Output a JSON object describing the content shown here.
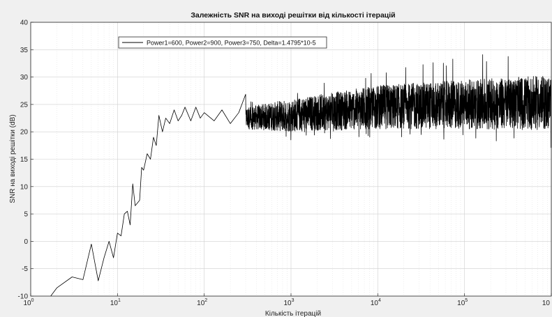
{
  "chart_data": {
    "type": "line",
    "title": "Залежність SNR на виході решітки від кількості ітерацій",
    "xlabel": "Кількість ітерацій",
    "ylabel": "SNR на виході решітки (dB)",
    "x_scale": "log",
    "xlim": [
      1,
      1000000
    ],
    "ylim": [
      -10,
      40
    ],
    "x_ticks": [
      1,
      10,
      100,
      1000,
      10000,
      100000,
      1000000
    ],
    "x_tick_labels": [
      {
        "base": "10",
        "exp": "0"
      },
      {
        "base": "10",
        "exp": "1"
      },
      {
        "base": "10",
        "exp": "2"
      },
      {
        "base": "10",
        "exp": "3"
      },
      {
        "base": "10",
        "exp": "4"
      },
      {
        "base": "10",
        "exp": "5"
      },
      {
        "base": "10",
        "exp": ""
      }
    ],
    "y_ticks": [
      -10,
      -5,
      0,
      5,
      10,
      15,
      20,
      25,
      30,
      35,
      40
    ],
    "grid": true,
    "minor_grid": true,
    "legend_position": "top-left",
    "series": [
      {
        "name": "Power1=600, Power2=900, Power3=750, Delta=1.4795*10-5",
        "color": "#000000",
        "points": [
          [
            1.7,
            -10
          ],
          [
            2,
            -8.5
          ],
          [
            3,
            -6.5
          ],
          [
            4,
            -7
          ],
          [
            5,
            -0.5
          ],
          [
            6,
            -7.2
          ],
          [
            7,
            -3
          ],
          [
            8,
            0
          ],
          [
            9,
            -3
          ],
          [
            10,
            1.5
          ],
          [
            11,
            1
          ],
          [
            12,
            5
          ],
          [
            13,
            5.5
          ],
          [
            14,
            3
          ],
          [
            15,
            10.5
          ],
          [
            16,
            6.5
          ],
          [
            18,
            7.5
          ],
          [
            19,
            13.5
          ],
          [
            20,
            13
          ],
          [
            22,
            16
          ],
          [
            24,
            15
          ],
          [
            26,
            19
          ],
          [
            28,
            17.5
          ],
          [
            30,
            23
          ],
          [
            33,
            20
          ],
          [
            36,
            22.5
          ],
          [
            40,
            21.5
          ],
          [
            45,
            24
          ],
          [
            50,
            22
          ],
          [
            55,
            23
          ],
          [
            60,
            24.5
          ],
          [
            70,
            22
          ],
          [
            80,
            24.5
          ],
          [
            90,
            22.5
          ],
          [
            100,
            23.5
          ],
          [
            130,
            22
          ],
          [
            160,
            24
          ],
          [
            200,
            21.5
          ],
          [
            250,
            23.5
          ]
        ],
        "noise_band": {
          "start": 300,
          "end": 1000000,
          "center": [
            [
              300,
              22.5
            ],
            [
              1000,
              23
            ],
            [
              10000,
              24.5
            ],
            [
              100000,
              25
            ],
            [
              1000000,
              25.3
            ]
          ],
          "half_width": [
            [
              300,
              2
            ],
            [
              1000,
              3
            ],
            [
              10000,
              4
            ],
            [
              100000,
              4.5
            ],
            [
              1000000,
              5
            ]
          ],
          "spike_max": [
            [
              300,
              26
            ],
            [
              1000,
              28
            ],
            [
              10000,
              31
            ],
            [
              100000,
              34
            ],
            [
              1000000,
              35
            ]
          ],
          "spike_min": [
            [
              300,
              18
            ],
            [
              1000,
              18.5
            ],
            [
              10000,
              19
            ],
            [
              100000,
              18
            ],
            [
              1000000,
              17
            ]
          ]
        }
      }
    ]
  }
}
